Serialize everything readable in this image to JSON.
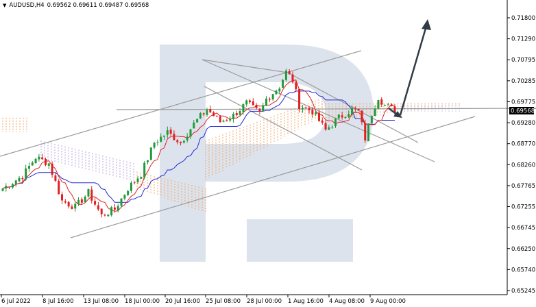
{
  "header": {
    "symbol_timeframe": "AUDUSD,H4",
    "ohlc": "0.69562 0.69611 0.69487 0.69568",
    "menu_icon": "triangle-down-icon"
  },
  "current_price": "0.69568",
  "colors": {
    "bull_candle": "#1f9a3a",
    "bear_candle": "#e02020",
    "tenkan": "#e02020",
    "kijun": "#1f2ad6",
    "cloud_orange": "#f0a060",
    "cloud_purple": "#b8a0e0",
    "trendlines": "#9a9a9a",
    "forecast_arrow": "#2f3c48",
    "price_tag_bg": "#000000",
    "watermark": "#dde3ec"
  },
  "chart_data": {
    "type": "candlestick",
    "title": "AUDUSD,H4",
    "ylim": [
      0.65245,
      0.7215
    ],
    "y_ticks": [
      "0.71800",
      "0.71290",
      "0.70795",
      "0.70285",
      "0.69775",
      "0.69280",
      "0.68770",
      "0.68260",
      "0.67765",
      "0.67255",
      "0.66745",
      "0.66250",
      "0.65740",
      "0.65245"
    ],
    "x_ticks": [
      "6 Jul 2022",
      "8 Jul 16:00",
      "13 Jul 08:00",
      "18 Jul 00:00",
      "20 Jul 16:00",
      "25 Jul 08:00",
      "28 Jul 00:00",
      "1 Aug 16:00",
      "4 Aug 08:00",
      "9 Aug 00:00"
    ],
    "last_price": 0.69568
  }
}
